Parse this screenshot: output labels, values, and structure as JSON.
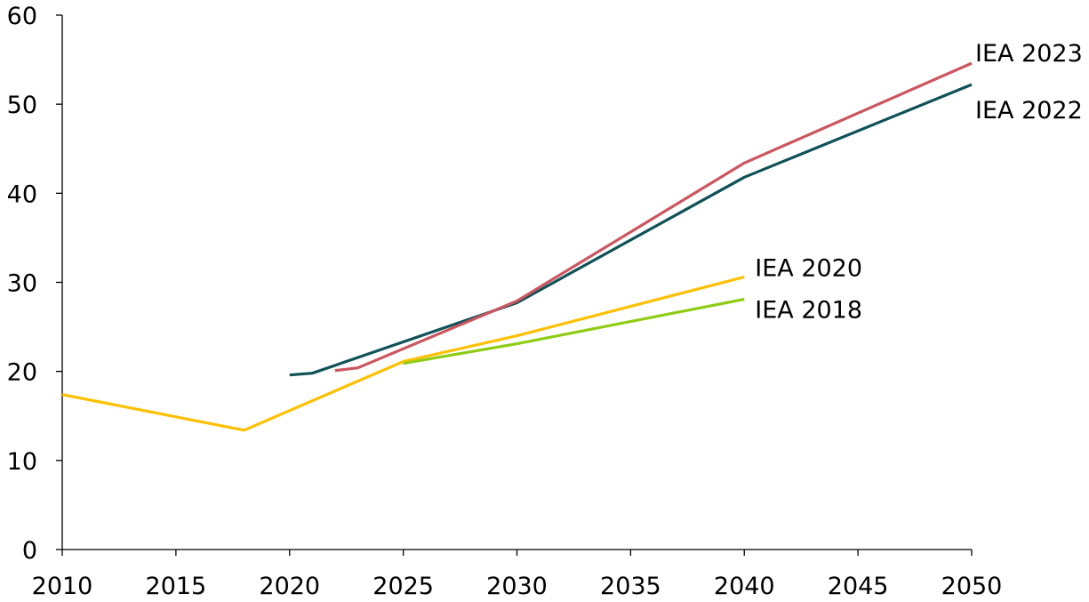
{
  "chart_data": {
    "type": "line",
    "title": "",
    "xlabel": "",
    "ylabel": "",
    "xlim": [
      2010,
      2050
    ],
    "ylim": [
      0,
      60
    ],
    "x_ticks": [
      "2010",
      "2015",
      "2020",
      "2025",
      "2030",
      "2035",
      "2040",
      "2045",
      "2050"
    ],
    "y_ticks": [
      "0",
      "10",
      "20",
      "30",
      "40",
      "50",
      "60"
    ],
    "grid": false,
    "legend": "inline labels at line ends",
    "series": [
      {
        "name": "",
        "color": "#ffc000",
        "points": [
          [
            2010,
            17.4
          ],
          [
            2018,
            13.4
          ],
          [
            2025,
            21.1
          ]
        ]
      },
      {
        "name": "IEA 2020",
        "color": "#ffc000",
        "points": [
          [
            2025,
            21.1
          ],
          [
            2030,
            24.0
          ],
          [
            2040,
            30.6
          ]
        ]
      },
      {
        "name": "IEA 2018",
        "color": "#8fcc14",
        "points": [
          [
            2025,
            20.9
          ],
          [
            2030,
            23.1
          ],
          [
            2040,
            28.1
          ]
        ]
      },
      {
        "name": "IEA 2022",
        "color": "#0f5257",
        "points": [
          [
            2020,
            19.6
          ],
          [
            2021,
            19.8
          ],
          [
            2030,
            27.7
          ],
          [
            2040,
            41.8
          ],
          [
            2050,
            52.2
          ]
        ]
      },
      {
        "name": "IEA 2023",
        "color": "#cc5660",
        "points": [
          [
            2022,
            20.1
          ],
          [
            2023,
            20.4
          ],
          [
            2030,
            27.9
          ],
          [
            2040,
            43.4
          ],
          [
            2050,
            54.6
          ]
        ]
      }
    ]
  }
}
